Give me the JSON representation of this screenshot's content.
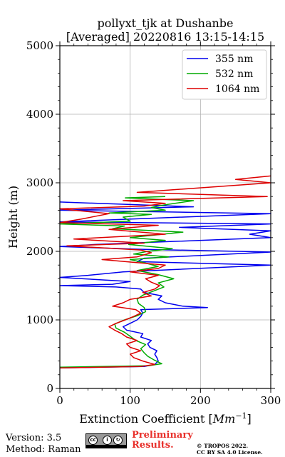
{
  "chart_data": {
    "type": "line",
    "title_line1": "pollyxt_tjk at Dushanbe",
    "title_line2": "[Averaged] 20220816 13:15-14:15",
    "xlabel": "Extinction Coefficient [",
    "xlabel_unit": "Mm",
    "xlabel_exp": "−1",
    "xlabel_close": "]",
    "ylabel": "Height (m)",
    "xlim": [
      0,
      300
    ],
    "ylim": [
      0,
      5000
    ],
    "xticks": [
      0,
      100,
      200,
      300
    ],
    "yticks": [
      0,
      1000,
      2000,
      3000,
      4000,
      5000
    ],
    "grid": true,
    "legend_position": "top-right",
    "series": [
      {
        "name": "355 nm",
        "color": "#0000ee",
        "points": [
          [
            0,
            300
          ],
          [
            120,
            320
          ],
          [
            135,
            350
          ],
          [
            140,
            400
          ],
          [
            138,
            450
          ],
          [
            135,
            500
          ],
          [
            138,
            550
          ],
          [
            128,
            600
          ],
          [
            125,
            650
          ],
          [
            130,
            700
          ],
          [
            115,
            750
          ],
          [
            118,
            800
          ],
          [
            95,
            850
          ],
          [
            90,
            900
          ],
          [
            100,
            950
          ],
          [
            110,
            1000
          ],
          [
            115,
            1050
          ],
          [
            118,
            1100
          ],
          [
            115,
            1150
          ],
          [
            210,
            1180
          ],
          [
            175,
            1200
          ],
          [
            150,
            1250
          ],
          [
            140,
            1300
          ],
          [
            145,
            1350
          ],
          [
            120,
            1400
          ],
          [
            115,
            1450
          ],
          [
            80,
            1480
          ],
          [
            0,
            1500
          ],
          [
            75,
            1520
          ],
          [
            100,
            1560
          ],
          [
            0,
            1620
          ],
          [
            40,
            1650
          ],
          [
            90,
            1700
          ],
          [
            300,
            1800
          ],
          [
            110,
            1850
          ],
          [
            120,
            1900
          ],
          [
            300,
            1990
          ],
          [
            115,
            2030
          ],
          [
            0,
            2070
          ],
          [
            50,
            2100
          ],
          [
            300,
            2200
          ],
          [
            270,
            2250
          ],
          [
            300,
            2300
          ],
          [
            170,
            2350
          ],
          [
            300,
            2400
          ],
          [
            0,
            2430
          ],
          [
            300,
            2550
          ],
          [
            0,
            2600
          ],
          [
            190,
            2650
          ],
          [
            0,
            2720
          ]
        ]
      },
      {
        "name": "532 nm",
        "color": "#00aa00",
        "points": [
          [
            0,
            310
          ],
          [
            125,
            330
          ],
          [
            145,
            360
          ],
          [
            135,
            410
          ],
          [
            125,
            470
          ],
          [
            120,
            520
          ],
          [
            115,
            580
          ],
          [
            122,
            640
          ],
          [
            108,
            700
          ],
          [
            100,
            760
          ],
          [
            92,
            820
          ],
          [
            80,
            880
          ],
          [
            78,
            940
          ],
          [
            92,
            1000
          ],
          [
            110,
            1060
          ],
          [
            122,
            1120
          ],
          [
            120,
            1180
          ],
          [
            112,
            1240
          ],
          [
            110,
            1300
          ],
          [
            118,
            1360
          ],
          [
            133,
            1420
          ],
          [
            148,
            1480
          ],
          [
            140,
            1540
          ],
          [
            162,
            1600
          ],
          [
            140,
            1660
          ],
          [
            110,
            1720
          ],
          [
            140,
            1780
          ],
          [
            118,
            1840
          ],
          [
            100,
            1880
          ],
          [
            155,
            1920
          ],
          [
            105,
            1960
          ],
          [
            125,
            2000
          ],
          [
            160,
            2040
          ],
          [
            98,
            2100
          ],
          [
            150,
            2160
          ],
          [
            100,
            2200
          ],
          [
            175,
            2280
          ],
          [
            75,
            2330
          ],
          [
            92,
            2370
          ],
          [
            0,
            2400
          ],
          [
            100,
            2440
          ],
          [
            90,
            2500
          ],
          [
            130,
            2540
          ],
          [
            70,
            2560
          ],
          [
            150,
            2600
          ],
          [
            130,
            2640
          ],
          [
            150,
            2680
          ],
          [
            190,
            2740
          ],
          [
            93,
            2780
          ],
          [
            150,
            2800
          ]
        ]
      },
      {
        "name": "1064 nm",
        "color": "#dd0000",
        "points": [
          [
            0,
            300
          ],
          [
            115,
            320
          ],
          [
            135,
            350
          ],
          [
            118,
            400
          ],
          [
            105,
            450
          ],
          [
            100,
            500
          ],
          [
            115,
            550
          ],
          [
            100,
            600
          ],
          [
            95,
            650
          ],
          [
            110,
            700
          ],
          [
            95,
            750
          ],
          [
            88,
            800
          ],
          [
            78,
            850
          ],
          [
            70,
            900
          ],
          [
            80,
            950
          ],
          [
            93,
            1000
          ],
          [
            105,
            1050
          ],
          [
            115,
            1100
          ],
          [
            108,
            1150
          ],
          [
            75,
            1200
          ],
          [
            90,
            1250
          ],
          [
            100,
            1300
          ],
          [
            130,
            1350
          ],
          [
            118,
            1400
          ],
          [
            135,
            1450
          ],
          [
            142,
            1500
          ],
          [
            130,
            1550
          ],
          [
            122,
            1600
          ],
          [
            140,
            1650
          ],
          [
            100,
            1700
          ],
          [
            140,
            1750
          ],
          [
            150,
            1800
          ],
          [
            60,
            1880
          ],
          [
            110,
            1920
          ],
          [
            130,
            1980
          ],
          [
            115,
            2020
          ],
          [
            10,
            2080
          ],
          [
            120,
            2120
          ],
          [
            20,
            2180
          ],
          [
            150,
            2250
          ],
          [
            70,
            2320
          ],
          [
            140,
            2380
          ],
          [
            0,
            2420
          ],
          [
            30,
            2470
          ],
          [
            70,
            2550
          ],
          [
            0,
            2620
          ],
          [
            120,
            2660
          ],
          [
            150,
            2700
          ],
          [
            90,
            2740
          ],
          [
            295,
            2800
          ],
          [
            110,
            2860
          ],
          [
            300,
            3000
          ],
          [
            250,
            3050
          ],
          [
            300,
            3100
          ]
        ]
      }
    ]
  },
  "footer": {
    "version": "Version: 3.5",
    "method": "Method: Raman",
    "preliminary_line1": "Preliminary",
    "preliminary_line2": "Results.",
    "copyright_line1": "© TROPOS 2022.",
    "copyright_line2": "CC BY SA 4.0 License.",
    "badge_text": "BY SA"
  }
}
